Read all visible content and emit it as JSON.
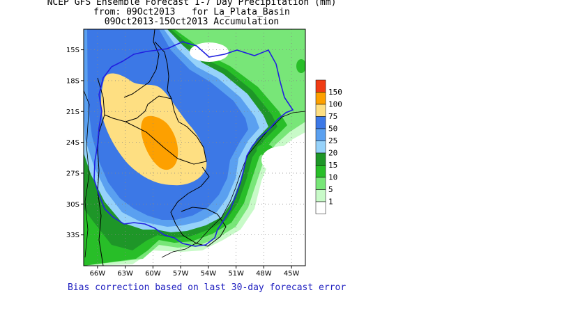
{
  "title": {
    "line1": "NCEP GFS Ensemble Forecast 1-7 Day Precipitation (mm)",
    "line2": "from: 09Oct2013   for La_Plata_Basin",
    "line3": "09Oct2013-15Oct2013 Accumulation"
  },
  "map": {
    "lat_labels": [
      "15S",
      "18S",
      "21S",
      "24S",
      "27S",
      "30S",
      "33S"
    ],
    "lon_labels": [
      "66W",
      "63W",
      "60W",
      "57W",
      "54W",
      "51W",
      "48W",
      "45W"
    ],
    "lon_range": [
      -67.5,
      -43.5
    ],
    "lat_range": [
      -36,
      -13
    ],
    "grid": "dotted"
  },
  "legend": {
    "levels": [
      {
        "label": "150",
        "color": "#f03c14"
      },
      {
        "label": "100",
        "color": "#fda000"
      },
      {
        "label": "75",
        "color": "#fedf82"
      },
      {
        "label": "50",
        "color": "#3c78e6"
      },
      {
        "label": "25",
        "color": "#5aa0f0"
      },
      {
        "label": "20",
        "color": "#96d2fa"
      },
      {
        "label": "15",
        "color": "#1e9628"
      },
      {
        "label": "10",
        "color": "#28be28"
      },
      {
        "label": "5",
        "color": "#78e678"
      },
      {
        "label": "1",
        "color": "#c8fac8"
      }
    ],
    "below_color": "#ffffff"
  },
  "footer": "Bias correction based on last 30-day forecast error"
}
